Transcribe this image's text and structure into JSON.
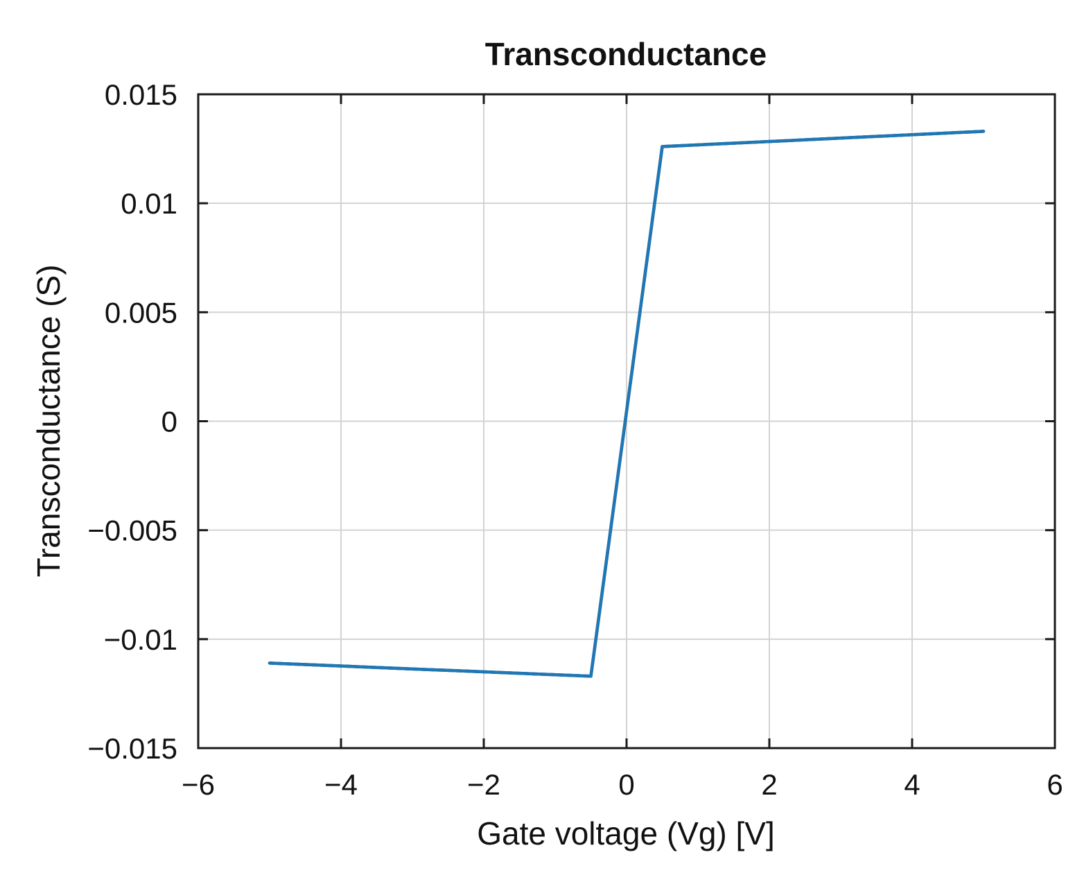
{
  "chart_data": {
    "type": "line",
    "title": "Transconductance",
    "xlabel": "Gate voltage (Vg) [V]",
    "ylabel": "Transconductance (S)",
    "xlim": [
      -6,
      6
    ],
    "ylim": [
      -0.015,
      0.015
    ],
    "grid": true,
    "legend": "none",
    "x_ticks": [
      -6,
      -4,
      -2,
      0,
      2,
      4,
      6
    ],
    "x_tick_labels": [
      "−6",
      "−4",
      "−2",
      "0",
      "2",
      "4",
      "6"
    ],
    "y_ticks": [
      -0.015,
      -0.01,
      -0.005,
      0,
      0.005,
      0.01,
      0.015
    ],
    "y_tick_labels": [
      "−0.015",
      "−0.01",
      "−0.005",
      "0",
      "0.005",
      "0.01",
      "0.015"
    ],
    "series": [
      {
        "color": "#1f77b4",
        "x": [
          -5,
          -0.5,
          0.5,
          5
        ],
        "y": [
          -0.0111,
          -0.0117,
          0.0126,
          0.0133
        ]
      }
    ]
  }
}
